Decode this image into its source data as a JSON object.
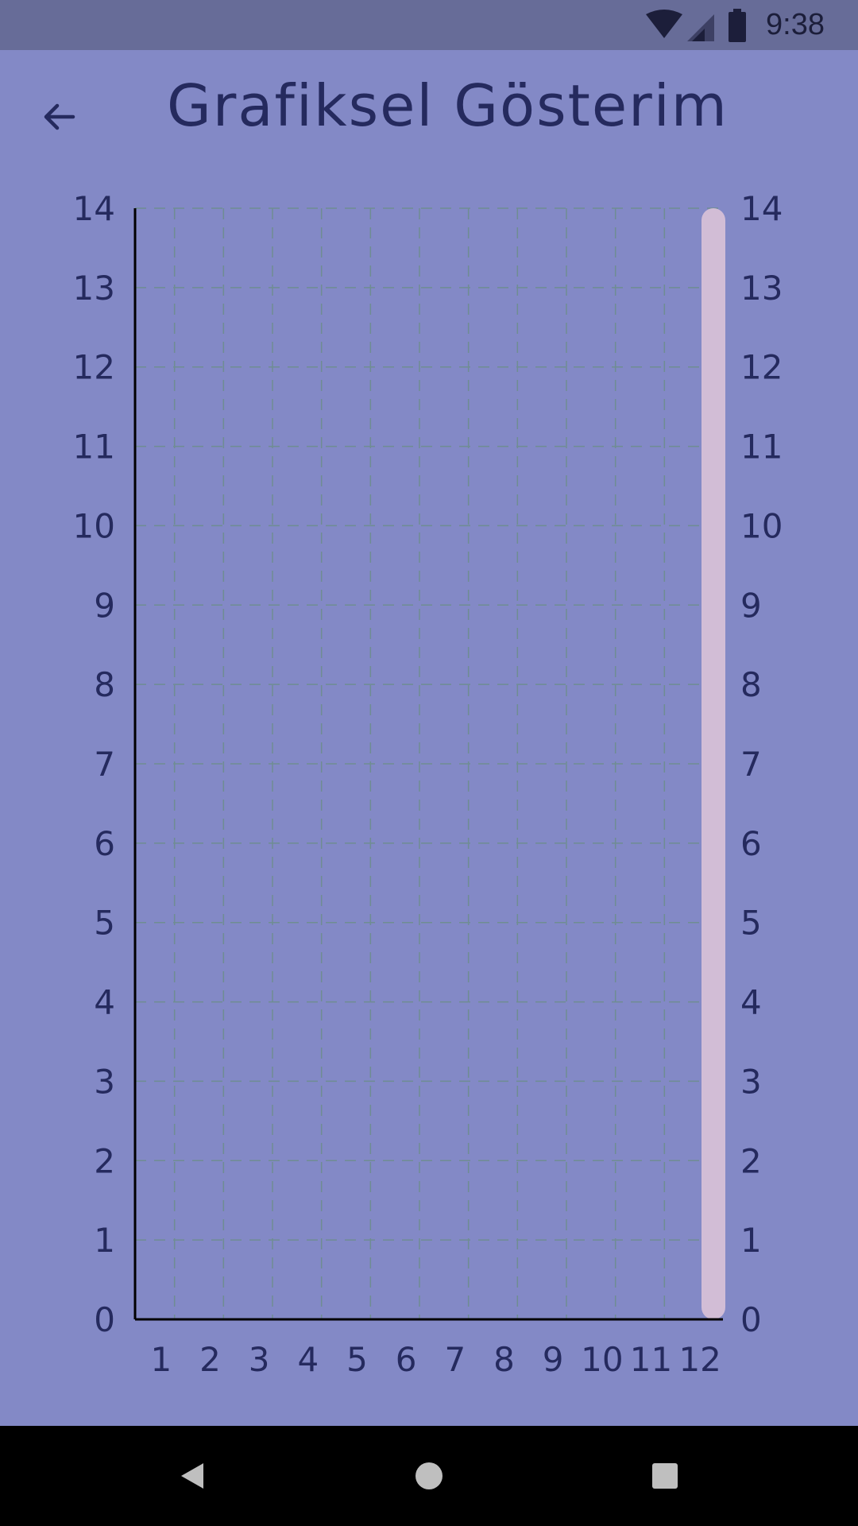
{
  "status_bar": {
    "time": "9:38",
    "icons": [
      "wifi-icon",
      "cellular-signal-icon",
      "battery-icon"
    ]
  },
  "app_bar": {
    "title": "Grafiksel Gösterim",
    "back_icon": "arrow-back-icon"
  },
  "chart_data": {
    "type": "bar",
    "categories": [
      "1",
      "2",
      "3",
      "4",
      "5",
      "6",
      "7",
      "8",
      "9",
      "10",
      "11",
      "12"
    ],
    "values": [
      0,
      0,
      0,
      0,
      0,
      0,
      0,
      0,
      0,
      0,
      0,
      14
    ],
    "ylim": [
      0,
      14
    ],
    "y_ticks": [
      0,
      1,
      2,
      3,
      4,
      5,
      6,
      7,
      8,
      9,
      10,
      11,
      12,
      13,
      14
    ],
    "y_axis_right": true,
    "grid": true,
    "bar_color": "#d2bdd6",
    "grid_color": "#6f8d92",
    "axis_color": "#000000"
  },
  "nav_bar": {
    "buttons": [
      "back-nav-icon",
      "home-nav-icon",
      "recents-nav-icon"
    ]
  }
}
